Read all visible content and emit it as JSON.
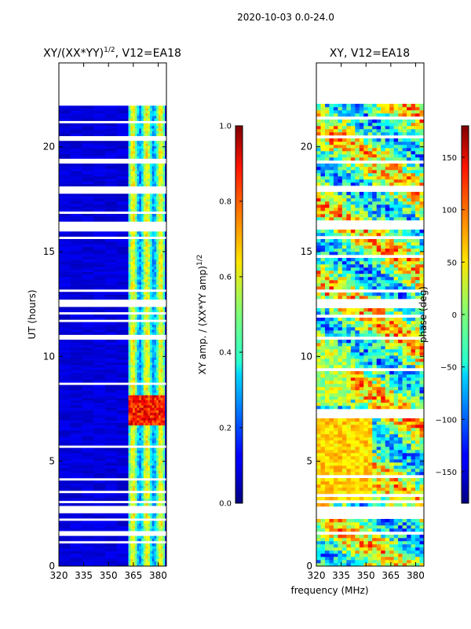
{
  "header": "2020-10-03 0.0-24.0",
  "chart_data": [
    {
      "type": "heatmap",
      "title_main": "XY/(XX*YY)",
      "title_exp": "1/2",
      "title_suffix": ", V12=EA18",
      "xlabel": "",
      "ylabel": "UT (hours)",
      "xlim": [
        320,
        385
      ],
      "ylim": [
        0,
        24
      ],
      "xticks": [
        320,
        335,
        350,
        365,
        380
      ],
      "yticks": [
        0,
        5,
        10,
        15,
        20
      ],
      "data_extent_hours": [
        0,
        22
      ],
      "colorbar": {
        "label_main": "XY amp. / (XX*YY amp)",
        "label_exp": "1/2",
        "range": [
          0.0,
          1.0
        ],
        "ticks": [
          "0.0",
          "0.2",
          "0.4",
          "0.6",
          "0.8",
          "1.0"
        ]
      }
    },
    {
      "type": "heatmap",
      "title": "XY, V12=EA18",
      "xlabel": "frequency (MHz)",
      "ylabel": "",
      "xlim": [
        320,
        385
      ],
      "ylim": [
        0,
        24
      ],
      "xticks": [
        320,
        335,
        350,
        365,
        380
      ],
      "yticks": [
        0,
        5,
        10,
        15,
        20
      ],
      "data_extent_hours": [
        0,
        22
      ],
      "colorbar": {
        "label": "phase (deg)",
        "range": [
          -180,
          180
        ],
        "ticks": [
          "150",
          "100",
          "50",
          "0",
          "−50",
          "−100",
          "−150"
        ],
        "tick_values": [
          150,
          100,
          50,
          0,
          -50,
          -100,
          -150
        ]
      }
    }
  ]
}
